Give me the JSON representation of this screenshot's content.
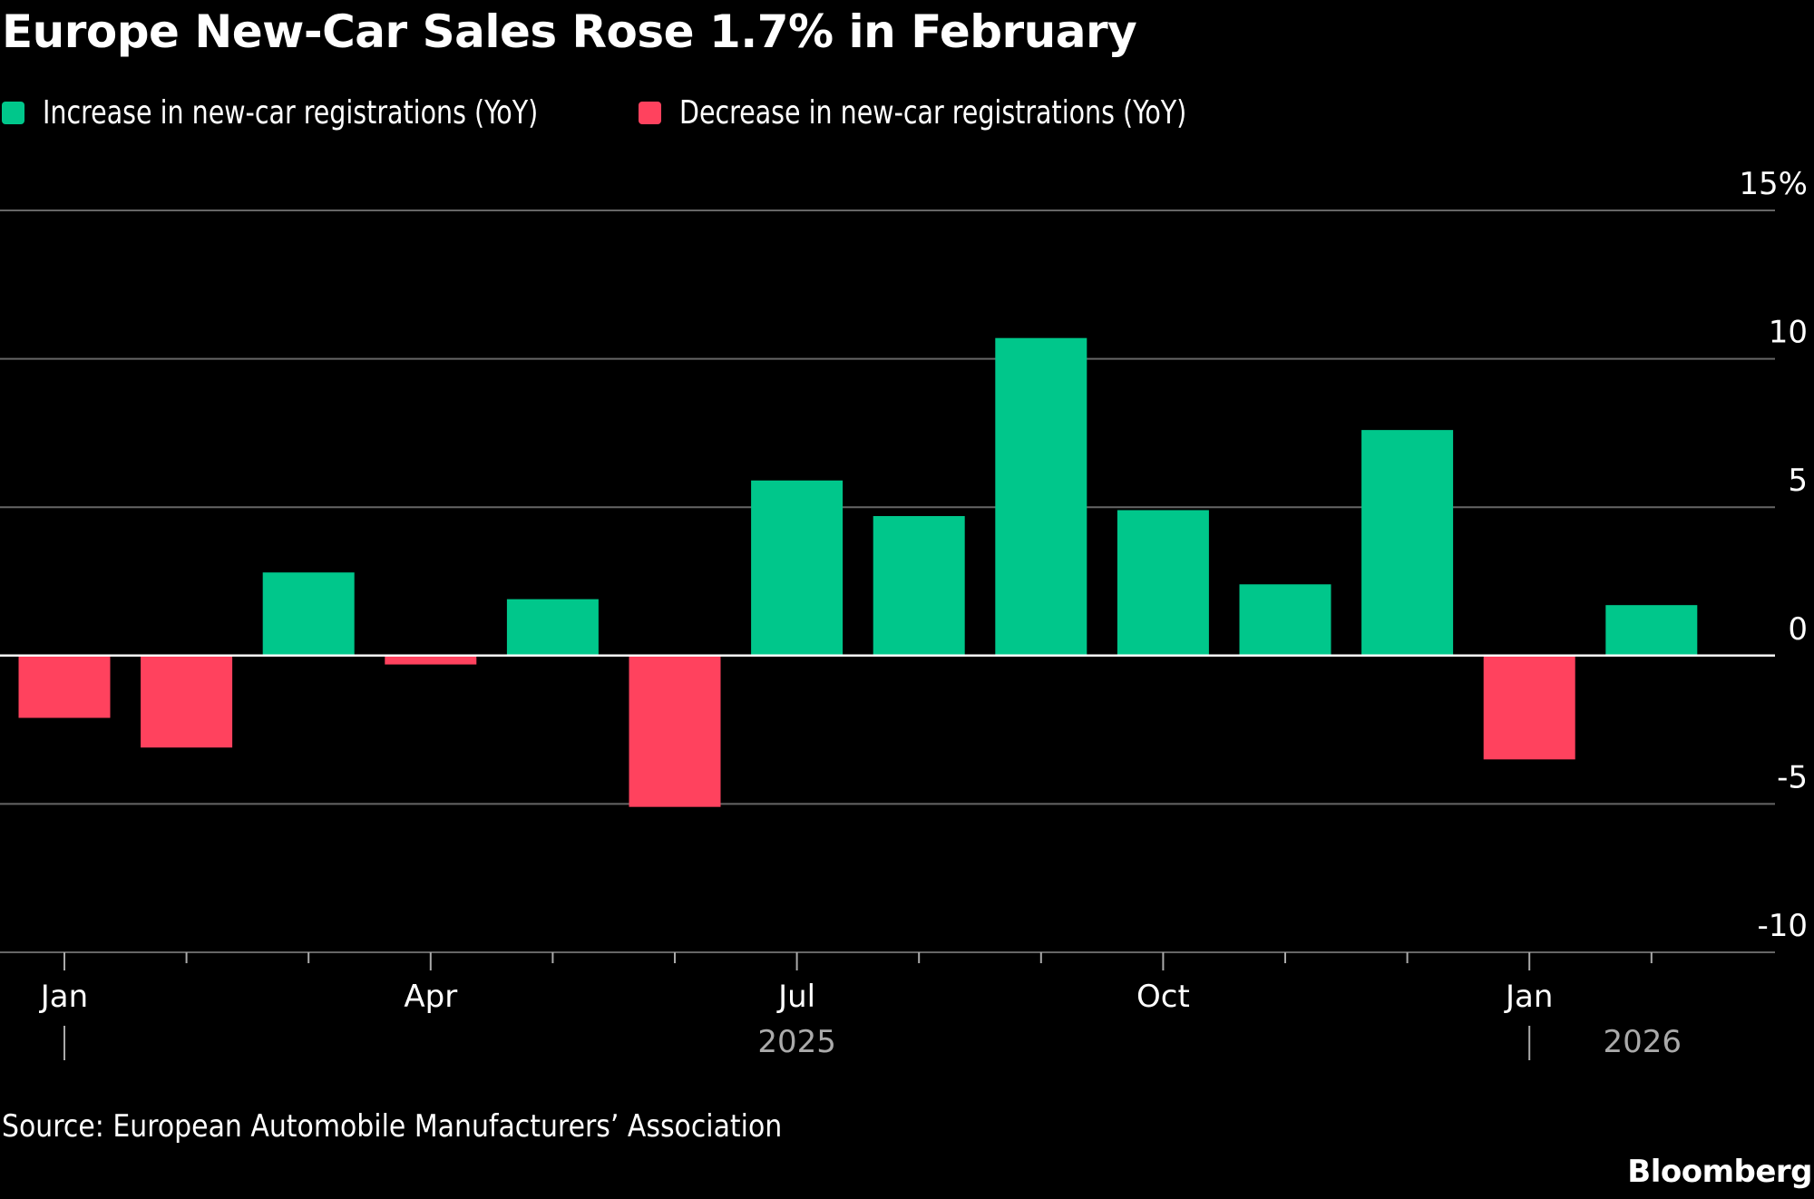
{
  "title": "Europe New-Car Sales Rose 1.7% in February",
  "legend": [
    {
      "label": "Increase in new-car registrations (YoY)",
      "color": "#00c78b"
    },
    {
      "label": "Decrease in new-car registrations (YoY)",
      "color": "#ff425e"
    }
  ],
  "source": "Source: European Automobile Manufacturers’ Association",
  "brand": "Bloomberg",
  "chart_data": {
    "type": "bar",
    "title": "Europe New-Car Sales Rose 1.7% in February",
    "xlabel": "",
    "ylabel": "",
    "categories": [
      "Jan 2025",
      "Feb 2025",
      "Mar 2025",
      "Apr 2025",
      "May 2025",
      "Jun 2025",
      "Jul 2025",
      "Aug 2025",
      "Sep 2025",
      "Oct 2025",
      "Nov 2025",
      "Dec 2025",
      "Jan 2026",
      "Feb 2026"
    ],
    "values": [
      -2.1,
      -3.1,
      2.8,
      -0.3,
      1.9,
      -5.1,
      5.9,
      4.7,
      10.7,
      4.9,
      2.4,
      7.6,
      -3.5,
      1.7
    ],
    "unit": "%",
    "ylim": [
      -10,
      15
    ],
    "yticks": [
      15,
      10,
      5,
      0,
      -5,
      -10
    ],
    "ytick_labels": [
      "15%",
      "10",
      "5",
      "0",
      "-5",
      "-10"
    ],
    "x_month_labels": [
      {
        "index": 0,
        "label": "Jan"
      },
      {
        "index": 3,
        "label": "Apr"
      },
      {
        "index": 6,
        "label": "Jul"
      },
      {
        "index": 9,
        "label": "Oct"
      },
      {
        "index": 12,
        "label": "Jan"
      }
    ],
    "x_year_labels": [
      {
        "index": 6,
        "label": "2025"
      },
      {
        "index": 13,
        "label": "2026"
      }
    ],
    "year_break_indices": [
      0,
      12
    ],
    "positive_color": "#00c78b",
    "negative_color": "#ff425e",
    "grid": true,
    "yaxis_side": "right",
    "legend_position": "top-left"
  }
}
